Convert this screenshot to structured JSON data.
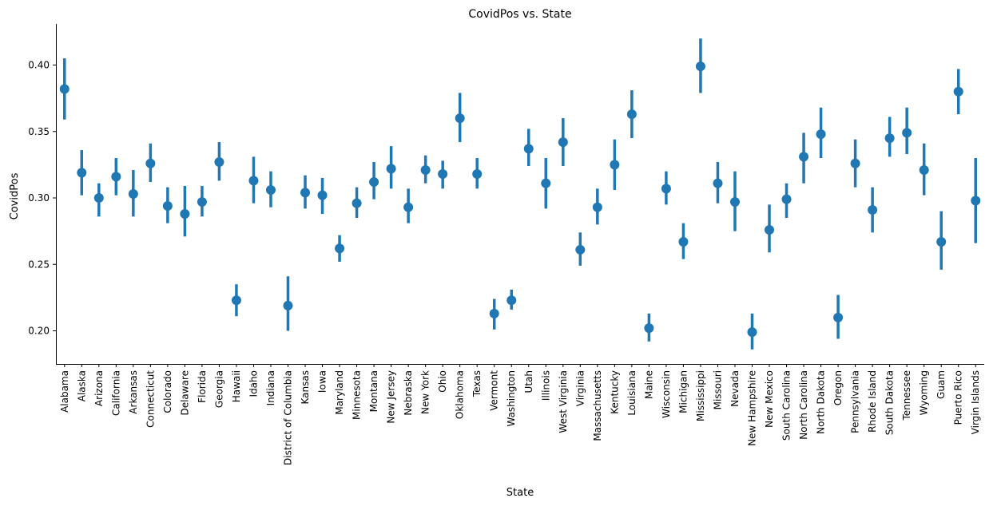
{
  "chart_data": {
    "type": "scatter",
    "title": "CovidPos vs. State",
    "xlabel": "State",
    "ylabel": "CovidPos",
    "ylim": [
      0.175,
      0.43
    ],
    "yticks": [
      0.2,
      0.25,
      0.3,
      0.35,
      0.4
    ],
    "ytick_labels": [
      "0.20",
      "0.25",
      "0.30",
      "0.35",
      "0.40"
    ],
    "grid": false,
    "color": "#1f77b4",
    "categories": [
      "Alabama",
      "Alaska",
      "Arizona",
      "California",
      "Arkansas",
      "Connecticut",
      "Colorado",
      "Delaware",
      "Florida",
      "Georgia",
      "Hawaii",
      "Idaho",
      "Indiana",
      "District of Columbia",
      "Kansas",
      "Iowa",
      "Maryland",
      "Minnesota",
      "Montana",
      "New Jersey",
      "Nebraska",
      "New York",
      "Ohio",
      "Oklahoma",
      "Texas",
      "Vermont",
      "Washington",
      "Utah",
      "Illinois",
      "West Virginia",
      "Virginia",
      "Massachusetts",
      "Kentucky",
      "Louisiana",
      "Maine",
      "Wisconsin",
      "Michigan",
      "Mississippi",
      "Missouri",
      "Nevada",
      "New Hampshire",
      "New Mexico",
      "South Carolina",
      "North Carolina",
      "North Dakota",
      "Oregon",
      "Pennsylvania",
      "Rhode Island",
      "South Dakota",
      "Tennessee",
      "Wyoming",
      "Guam",
      "Puerto Rico",
      "Virgin Islands"
    ],
    "values": [
      0.382,
      0.319,
      0.3,
      0.316,
      0.303,
      0.326,
      0.294,
      0.288,
      0.297,
      0.327,
      0.223,
      0.313,
      0.306,
      0.219,
      0.304,
      0.302,
      0.262,
      0.296,
      0.312,
      0.322,
      0.293,
      0.321,
      0.318,
      0.36,
      0.318,
      0.213,
      0.223,
      0.337,
      0.311,
      0.342,
      0.261,
      0.293,
      0.325,
      0.363,
      0.202,
      0.307,
      0.267,
      0.399,
      0.311,
      0.297,
      0.199,
      0.276,
      0.299,
      0.331,
      0.348,
      0.21,
      0.326,
      0.291,
      0.345,
      0.349,
      0.321,
      0.267,
      0.38,
      0.298
    ],
    "ci_low": [
      0.359,
      0.302,
      0.286,
      0.302,
      0.286,
      0.312,
      0.281,
      0.271,
      0.286,
      0.313,
      0.211,
      0.296,
      0.293,
      0.2,
      0.292,
      0.288,
      0.252,
      0.285,
      0.299,
      0.307,
      0.281,
      0.311,
      0.307,
      0.342,
      0.307,
      0.201,
      0.216,
      0.324,
      0.292,
      0.324,
      0.249,
      0.28,
      0.306,
      0.345,
      0.192,
      0.295,
      0.254,
      0.379,
      0.296,
      0.275,
      0.186,
      0.259,
      0.285,
      0.311,
      0.33,
      0.194,
      0.308,
      0.274,
      0.331,
      0.333,
      0.302,
      0.246,
      0.363,
      0.266
    ],
    "ci_high": [
      0.405,
      0.336,
      0.311,
      0.33,
      0.321,
      0.341,
      0.308,
      0.309,
      0.309,
      0.342,
      0.235,
      0.331,
      0.32,
      0.241,
      0.317,
      0.315,
      0.272,
      0.308,
      0.327,
      0.339,
      0.307,
      0.332,
      0.328,
      0.379,
      0.33,
      0.224,
      0.231,
      0.352,
      0.33,
      0.36,
      0.274,
      0.307,
      0.344,
      0.381,
      0.213,
      0.32,
      0.281,
      0.42,
      0.327,
      0.32,
      0.213,
      0.295,
      0.311,
      0.349,
      0.368,
      0.227,
      0.344,
      0.308,
      0.361,
      0.368,
      0.341,
      0.29,
      0.397,
      0.33
    ]
  }
}
